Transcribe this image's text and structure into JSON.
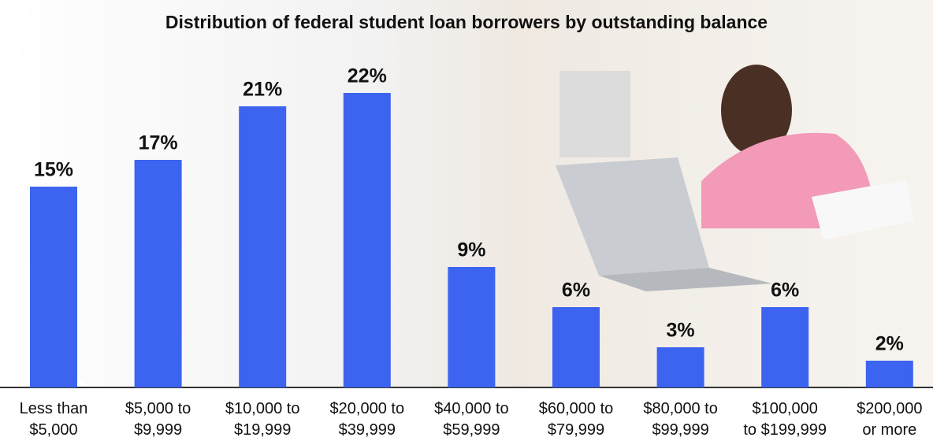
{
  "chart_data": {
    "type": "bar",
    "title": "Distribution of federal student loan borrowers by outstanding balance",
    "categories": [
      "Less than\n$5,000",
      "$5,000 to\n$9,999",
      "$10,000 to\n$19,999",
      "$20,000 to\n$39,999",
      "$40,000 to\n$59,999",
      "$60,000 to\n$79,999",
      "$80,000 to\n$99,999",
      "$100,000\nto $199,999",
      "$200,000\nor more"
    ],
    "values": [
      15,
      17,
      21,
      22,
      9,
      6,
      3,
      6,
      2
    ],
    "value_labels": [
      "15%",
      "17%",
      "21%",
      "22%",
      "9%",
      "6%",
      "3%",
      "6%",
      "2%"
    ],
    "color": "#3c64f0"
  }
}
